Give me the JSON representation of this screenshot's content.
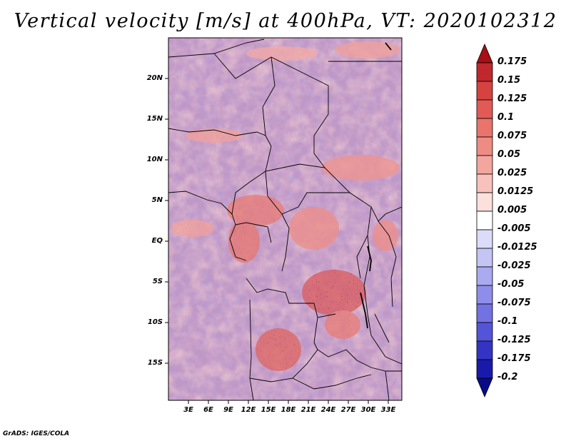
{
  "title": "Vertical velocity [m/s] at 400hPa, VT: 2020102312",
  "map": {
    "variable": "Vertical velocity",
    "units": "m/s",
    "level": "400hPa",
    "valid_time": "2020102312",
    "lat_labels": [
      "20N",
      "15N",
      "10N",
      "5N",
      "EQ",
      "5S",
      "10S",
      "15S"
    ],
    "lon_labels": [
      "3E",
      "6E",
      "9E",
      "12E",
      "15E",
      "18E",
      "21E",
      "24E",
      "27E",
      "30E",
      "33E"
    ]
  },
  "colorbar": {
    "labels": [
      "0.175",
      "0.15",
      "0.125",
      "0.1",
      "0.075",
      "0.05",
      "0.025",
      "0.0125",
      "0.005",
      "-0.005",
      "-0.0125",
      "-0.025",
      "-0.05",
      "-0.075",
      "-0.1",
      "-0.125",
      "-0.175",
      "-0.2"
    ],
    "colors": [
      "#a50f15",
      "#c0282d",
      "#d6423f",
      "#e25a55",
      "#e8746c",
      "#ee8c84",
      "#f3a69e",
      "#f8c2bc",
      "#fce0dc",
      "#ffffff",
      "#dcdcfa",
      "#c4c4f5",
      "#aaaaf0",
      "#8e8eea",
      "#7272e2",
      "#5454d8",
      "#3434c4",
      "#1a1aaa",
      "#0a0a88"
    ]
  },
  "footer": "GrADS: IGES/COLA"
}
